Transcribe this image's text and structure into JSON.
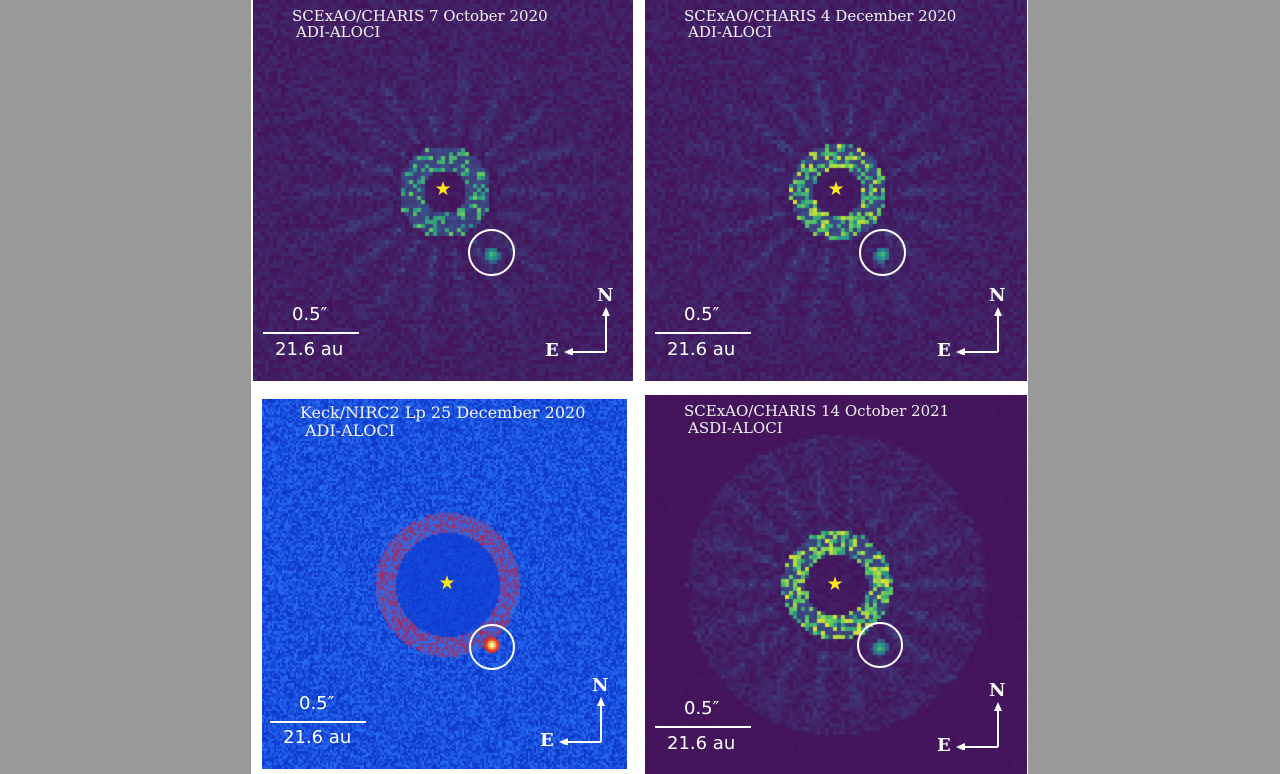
{
  "colors": {
    "page_background": "#999999",
    "figure_background": "#ffffff",
    "viridis_background": "#44125a",
    "jet_background": "#0a2cb4",
    "star": "#ffe61a",
    "annotation": "#ffffff"
  },
  "panels": [
    {
      "id": "top-left",
      "colormap": "viridis",
      "title_line1": "SCExAO/CHARIS 7 October 2020",
      "title_line2": "ADI-ALOCI",
      "star_symbol": "★",
      "scale_angle": "0.5″",
      "scale_distance": "21.6 au",
      "compass_north": "N",
      "compass_east": "E"
    },
    {
      "id": "top-right",
      "colormap": "viridis",
      "title_line1": "SCExAO/CHARIS 4 December 2020",
      "title_line2": "ADI-ALOCI",
      "star_symbol": "★",
      "scale_angle": "0.5″",
      "scale_distance": "21.6 au",
      "compass_north": "N",
      "compass_east": "E"
    },
    {
      "id": "bottom-left",
      "colormap": "jet",
      "title_line1": "Keck/NIRC2 Lp 25 December 2020",
      "title_line2": "ADI-ALOCI",
      "star_symbol": "★",
      "scale_angle": "0.5″",
      "scale_distance": "21.6 au",
      "compass_north": "N",
      "compass_east": "E"
    },
    {
      "id": "bottom-right",
      "colormap": "viridis",
      "title_line1": "SCExAO/CHARIS 14 October 2021",
      "title_line2": "ASDI-ALOCI",
      "star_symbol": "★",
      "scale_angle": "0.5″",
      "scale_distance": "21.6 au",
      "compass_north": "N",
      "compass_east": "E"
    }
  ]
}
